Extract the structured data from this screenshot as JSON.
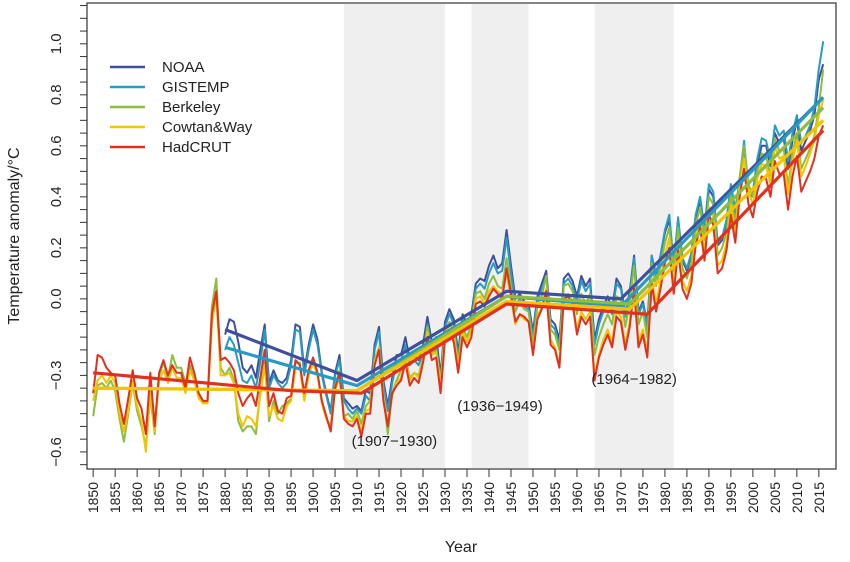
{
  "chart_data": {
    "type": "line",
    "title": "",
    "xlabel": "Year",
    "ylabel": "Temperature anomaly/°C",
    "xlim": [
      1848.6,
      2018.9
    ],
    "ylim": [
      -0.667,
      1.16
    ],
    "x_ticks": [
      1850,
      1855,
      1860,
      1865,
      1870,
      1875,
      1880,
      1885,
      1890,
      1895,
      1900,
      1905,
      1910,
      1915,
      1920,
      1925,
      1930,
      1935,
      1940,
      1945,
      1950,
      1955,
      1960,
      1965,
      1970,
      1975,
      1980,
      1985,
      1990,
      1995,
      2000,
      2005,
      2010,
      2015
    ],
    "y_ticks": [
      -0.6,
      -0.3,
      0.0,
      0.2,
      0.4,
      0.6,
      0.8,
      1.0
    ],
    "y_tick_labels": [
      "−0.6",
      "−0.3",
      "0.0",
      "0.2",
      "0.4",
      "0.6",
      "0.8",
      "1.0"
    ],
    "y_minor_step": 0.05,
    "grid": false,
    "legend_placement": "top-left",
    "shaded_periods": [
      {
        "start": 1907,
        "end": 1930,
        "label": "(1907−1930)"
      },
      {
        "start": 1936,
        "end": 1949,
        "label": "(1936−1949)"
      },
      {
        "start": 1964,
        "end": 1982,
        "label": "(1964−1982)"
      }
    ],
    "shade_color": "#efefef",
    "series": [
      {
        "name": "NOAA",
        "color": "#3f4f9c",
        "start_year": 1880,
        "values": [
          -0.14,
          -0.08,
          -0.09,
          -0.17,
          -0.27,
          -0.29,
          -0.26,
          -0.31,
          -0.2,
          -0.1,
          -0.33,
          -0.28,
          -0.32,
          -0.33,
          -0.31,
          -0.24,
          -0.1,
          -0.11,
          -0.28,
          -0.18,
          -0.1,
          -0.16,
          -0.29,
          -0.37,
          -0.44,
          -0.29,
          -0.22,
          -0.39,
          -0.41,
          -0.43,
          -0.42,
          -0.44,
          -0.36,
          -0.37,
          -0.18,
          -0.11,
          -0.32,
          -0.42,
          -0.31,
          -0.22,
          -0.22,
          -0.15,
          -0.24,
          -0.22,
          -0.24,
          -0.18,
          -0.07,
          -0.17,
          -0.15,
          -0.3,
          -0.09,
          -0.04,
          -0.08,
          -0.21,
          -0.06,
          -0.1,
          -0.06,
          0.06,
          0.08,
          0.07,
          0.13,
          0.17,
          0.12,
          0.14,
          0.27,
          0.13,
          0.0,
          0.02,
          -0.01,
          -0.02,
          -0.13,
          0.01,
          0.06,
          0.11,
          -0.08,
          -0.1,
          -0.16,
          0.08,
          0.1,
          0.07,
          0.01,
          0.09,
          0.05,
          0.08,
          -0.16,
          -0.08,
          -0.03,
          0.01,
          -0.04,
          0.08,
          0.05,
          -0.06,
          0.03,
          0.17,
          -0.05,
          -0.01,
          -0.1,
          0.17,
          0.09,
          0.17,
          0.26,
          0.31,
          0.13,
          0.31,
          0.15,
          0.11,
          0.17,
          0.32,
          0.38,
          0.27,
          0.43,
          0.4,
          0.21,
          0.23,
          0.3,
          0.43,
          0.33,
          0.46,
          0.6,
          0.41,
          0.4,
          0.53,
          0.6,
          0.6,
          0.52,
          0.65,
          0.61,
          0.63,
          0.51,
          0.62,
          0.7,
          0.58,
          0.62,
          0.66,
          0.72,
          0.86,
          0.92
        ],
        "trend": [
          [
            1880,
            -0.12
          ],
          [
            1910,
            -0.32
          ],
          [
            1944,
            0.03
          ],
          [
            1970,
            0.0
          ],
          [
            2016,
            0.79
          ]
        ]
      },
      {
        "name": "GISTEMP",
        "color": "#2a9ac2",
        "start_year": 1880,
        "values": [
          -0.2,
          -0.15,
          -0.18,
          -0.25,
          -0.32,
          -0.33,
          -0.3,
          -0.35,
          -0.25,
          -0.12,
          -0.35,
          -0.3,
          -0.33,
          -0.35,
          -0.33,
          -0.26,
          -0.12,
          -0.13,
          -0.3,
          -0.2,
          -0.12,
          -0.18,
          -0.3,
          -0.38,
          -0.45,
          -0.3,
          -0.24,
          -0.4,
          -0.43,
          -0.45,
          -0.43,
          -0.45,
          -0.38,
          -0.4,
          -0.2,
          -0.13,
          -0.34,
          -0.44,
          -0.33,
          -0.25,
          -0.24,
          -0.18,
          -0.26,
          -0.24,
          -0.26,
          -0.21,
          -0.1,
          -0.19,
          -0.18,
          -0.32,
          -0.11,
          -0.06,
          -0.1,
          -0.23,
          -0.08,
          -0.12,
          -0.08,
          0.04,
          0.06,
          0.04,
          0.1,
          0.14,
          0.1,
          0.11,
          0.24,
          0.1,
          -0.02,
          0.0,
          -0.03,
          -0.04,
          -0.15,
          -0.01,
          0.04,
          0.09,
          -0.1,
          -0.12,
          -0.18,
          0.06,
          0.08,
          0.05,
          -0.01,
          0.07,
          0.03,
          0.06,
          -0.18,
          -0.1,
          -0.05,
          -0.01,
          -0.06,
          0.06,
          0.04,
          -0.07,
          0.02,
          0.16,
          -0.06,
          -0.02,
          -0.11,
          0.17,
          0.08,
          0.17,
          0.27,
          0.33,
          0.13,
          0.32,
          0.16,
          0.12,
          0.18,
          0.33,
          0.4,
          0.28,
          0.45,
          0.42,
          0.22,
          0.24,
          0.31,
          0.45,
          0.35,
          0.47,
          0.62,
          0.42,
          0.42,
          0.55,
          0.63,
          0.62,
          0.54,
          0.68,
          0.64,
          0.66,
          0.54,
          0.65,
          0.72,
          0.61,
          0.64,
          0.68,
          0.75,
          0.9,
          1.01
        ],
        "trend": [
          [
            1880,
            -0.19
          ],
          [
            1910,
            -0.34
          ],
          [
            1944,
            0.01
          ],
          [
            1970,
            -0.03
          ],
          [
            2016,
            0.79
          ]
        ]
      },
      {
        "name": "Berkeley",
        "color": "#8cbd3f",
        "start_year": 1850,
        "values": [
          -0.46,
          -0.34,
          -0.33,
          -0.35,
          -0.32,
          -0.36,
          -0.47,
          -0.56,
          -0.45,
          -0.33,
          -0.44,
          -0.5,
          -0.58,
          -0.38,
          -0.53,
          -0.3,
          -0.25,
          -0.31,
          -0.22,
          -0.27,
          -0.27,
          -0.33,
          -0.26,
          -0.32,
          -0.38,
          -0.41,
          -0.4,
          -0.03,
          0.08,
          -0.27,
          -0.3,
          -0.27,
          -0.32,
          -0.48,
          -0.52,
          -0.5,
          -0.5,
          -0.53,
          -0.36,
          -0.24,
          -0.48,
          -0.4,
          -0.45,
          -0.42,
          -0.41,
          -0.39,
          -0.25,
          -0.25,
          -0.39,
          -0.28,
          -0.24,
          -0.29,
          -0.41,
          -0.47,
          -0.5,
          -0.34,
          -0.28,
          -0.46,
          -0.45,
          -0.47,
          -0.44,
          -0.49,
          -0.42,
          -0.4,
          -0.24,
          -0.19,
          -0.38,
          -0.53,
          -0.37,
          -0.32,
          -0.28,
          -0.23,
          -0.31,
          -0.29,
          -0.3,
          -0.23,
          -0.11,
          -0.21,
          -0.2,
          -0.33,
          -0.13,
          -0.09,
          -0.13,
          -0.25,
          -0.11,
          -0.15,
          -0.1,
          0.02,
          0.03,
          0.0,
          0.06,
          0.09,
          0.05,
          0.04,
          0.16,
          0.05,
          -0.05,
          -0.01,
          -0.04,
          -0.05,
          -0.18,
          -0.03,
          0.01,
          0.09,
          -0.12,
          -0.14,
          -0.2,
          0.05,
          0.06,
          0.03,
          -0.06,
          0.02,
          -0.02,
          0.02,
          -0.22,
          -0.15,
          -0.1,
          -0.06,
          -0.1,
          0.01,
          0.0,
          -0.11,
          -0.01,
          0.13,
          -0.1,
          -0.05,
          -0.15,
          0.14,
          0.05,
          0.13,
          0.22,
          0.28,
          0.11,
          0.28,
          0.12,
          0.08,
          0.14,
          0.29,
          0.36,
          0.23,
          0.4,
          0.37,
          0.17,
          0.2,
          0.26,
          0.41,
          0.3,
          0.48,
          0.6,
          0.45,
          0.4,
          0.5,
          0.57,
          0.56,
          0.48,
          0.63,
          0.58,
          0.59,
          0.44,
          0.57,
          0.65,
          0.51,
          0.55,
          0.59,
          0.64,
          0.75,
          0.9
        ],
        "trend": [
          [
            1850,
            -0.35
          ],
          [
            1910,
            -0.36
          ],
          [
            1944,
            0.01
          ],
          [
            1972,
            -0.02
          ],
          [
            2016,
            0.75
          ]
        ]
      },
      {
        "name": "Cowtan&Way",
        "color": "#f2c400",
        "start_year": 1850,
        "values": [
          -0.4,
          -0.32,
          -0.3,
          -0.33,
          -0.3,
          -0.33,
          -0.45,
          -0.52,
          -0.44,
          -0.32,
          -0.42,
          -0.48,
          -0.6,
          -0.36,
          -0.52,
          -0.32,
          -0.28,
          -0.33,
          -0.27,
          -0.31,
          -0.31,
          -0.37,
          -0.28,
          -0.32,
          -0.39,
          -0.41,
          -0.41,
          -0.1,
          0.01,
          -0.3,
          -0.3,
          -0.29,
          -0.33,
          -0.45,
          -0.5,
          -0.46,
          -0.47,
          -0.5,
          -0.38,
          -0.26,
          -0.46,
          -0.42,
          -0.47,
          -0.48,
          -0.42,
          -0.4,
          -0.27,
          -0.27,
          -0.4,
          -0.3,
          -0.25,
          -0.3,
          -0.41,
          -0.47,
          -0.51,
          -0.36,
          -0.31,
          -0.46,
          -0.48,
          -0.48,
          -0.46,
          -0.52,
          -0.44,
          -0.43,
          -0.25,
          -0.19,
          -0.38,
          -0.49,
          -0.38,
          -0.33,
          -0.31,
          -0.24,
          -0.32,
          -0.29,
          -0.31,
          -0.24,
          -0.13,
          -0.22,
          -0.21,
          -0.34,
          -0.14,
          -0.1,
          -0.14,
          -0.27,
          -0.13,
          -0.17,
          -0.12,
          0.0,
          0.01,
          -0.02,
          0.03,
          0.05,
          0.03,
          0.02,
          0.1,
          0.0,
          -0.1,
          -0.06,
          -0.08,
          -0.09,
          -0.21,
          -0.07,
          -0.03,
          0.04,
          -0.16,
          -0.19,
          -0.26,
          0.01,
          0.02,
          -0.01,
          -0.12,
          -0.05,
          -0.08,
          -0.05,
          -0.3,
          -0.22,
          -0.16,
          -0.12,
          -0.17,
          -0.05,
          -0.07,
          -0.18,
          -0.09,
          0.06,
          -0.17,
          -0.12,
          -0.21,
          0.08,
          -0.02,
          0.07,
          0.17,
          0.24,
          0.05,
          0.22,
          0.07,
          0.03,
          0.09,
          0.24,
          0.31,
          0.18,
          0.36,
          0.32,
          0.13,
          0.15,
          0.22,
          0.37,
          0.26,
          0.44,
          0.55,
          0.42,
          0.37,
          0.47,
          0.53,
          0.52,
          0.45,
          0.6,
          0.55,
          0.56,
          0.41,
          0.54,
          0.62,
          0.48,
          0.52,
          0.57,
          0.62,
          0.72,
          0.78
        ],
        "trend": [
          [
            1850,
            -0.35
          ],
          [
            1910,
            -0.36
          ],
          [
            1944,
            -0.01
          ],
          [
            1972,
            -0.04
          ],
          [
            2016,
            0.7
          ]
        ]
      },
      {
        "name": "HadCRUT",
        "color": "#df3020",
        "start_year": 1850,
        "values": [
          -0.37,
          -0.22,
          -0.23,
          -0.27,
          -0.29,
          -0.3,
          -0.41,
          -0.49,
          -0.39,
          -0.28,
          -0.39,
          -0.43,
          -0.53,
          -0.29,
          -0.5,
          -0.29,
          -0.24,
          -0.3,
          -0.26,
          -0.29,
          -0.29,
          -0.35,
          -0.23,
          -0.29,
          -0.37,
          -0.4,
          -0.4,
          -0.06,
          0.03,
          -0.24,
          -0.23,
          -0.25,
          -0.28,
          -0.37,
          -0.42,
          -0.39,
          -0.37,
          -0.42,
          -0.31,
          -0.2,
          -0.42,
          -0.37,
          -0.44,
          -0.45,
          -0.39,
          -0.38,
          -0.24,
          -0.26,
          -0.37,
          -0.28,
          -0.23,
          -0.29,
          -0.4,
          -0.46,
          -0.52,
          -0.35,
          -0.29,
          -0.47,
          -0.49,
          -0.5,
          -0.47,
          -0.54,
          -0.45,
          -0.45,
          -0.26,
          -0.2,
          -0.4,
          -0.5,
          -0.37,
          -0.34,
          -0.32,
          -0.25,
          -0.34,
          -0.31,
          -0.33,
          -0.25,
          -0.15,
          -0.24,
          -0.23,
          -0.37,
          -0.16,
          -0.12,
          -0.17,
          -0.29,
          -0.15,
          -0.19,
          -0.15,
          -0.02,
          -0.01,
          -0.03,
          0.01,
          0.04,
          0.02,
          0.0,
          0.12,
          0.02,
          -0.09,
          -0.06,
          -0.07,
          -0.09,
          -0.22,
          -0.08,
          -0.04,
          0.03,
          -0.18,
          -0.2,
          -0.27,
          0.0,
          0.01,
          -0.02,
          -0.14,
          -0.07,
          -0.1,
          -0.07,
          -0.32,
          -0.23,
          -0.18,
          -0.14,
          -0.19,
          -0.07,
          -0.09,
          -0.2,
          -0.11,
          0.04,
          -0.19,
          -0.14,
          -0.23,
          0.06,
          -0.05,
          0.04,
          0.14,
          0.2,
          0.02,
          0.19,
          0.04,
          0.0,
          0.06,
          0.21,
          0.28,
          0.15,
          0.33,
          0.29,
          0.1,
          0.12,
          0.19,
          0.33,
          0.22,
          0.4,
          0.51,
          0.37,
          0.32,
          0.42,
          0.48,
          0.47,
          0.4,
          0.54,
          0.49,
          0.49,
          0.35,
          0.48,
          0.56,
          0.42,
          0.46,
          0.5,
          0.55,
          0.64,
          0.68
        ],
        "trend": [
          [
            1850,
            -0.29
          ],
          [
            1895,
            -0.36
          ],
          [
            1911,
            -0.37
          ],
          [
            1944,
            -0.02
          ],
          [
            1976,
            -0.06
          ],
          [
            2016,
            0.66
          ]
        ]
      }
    ]
  }
}
